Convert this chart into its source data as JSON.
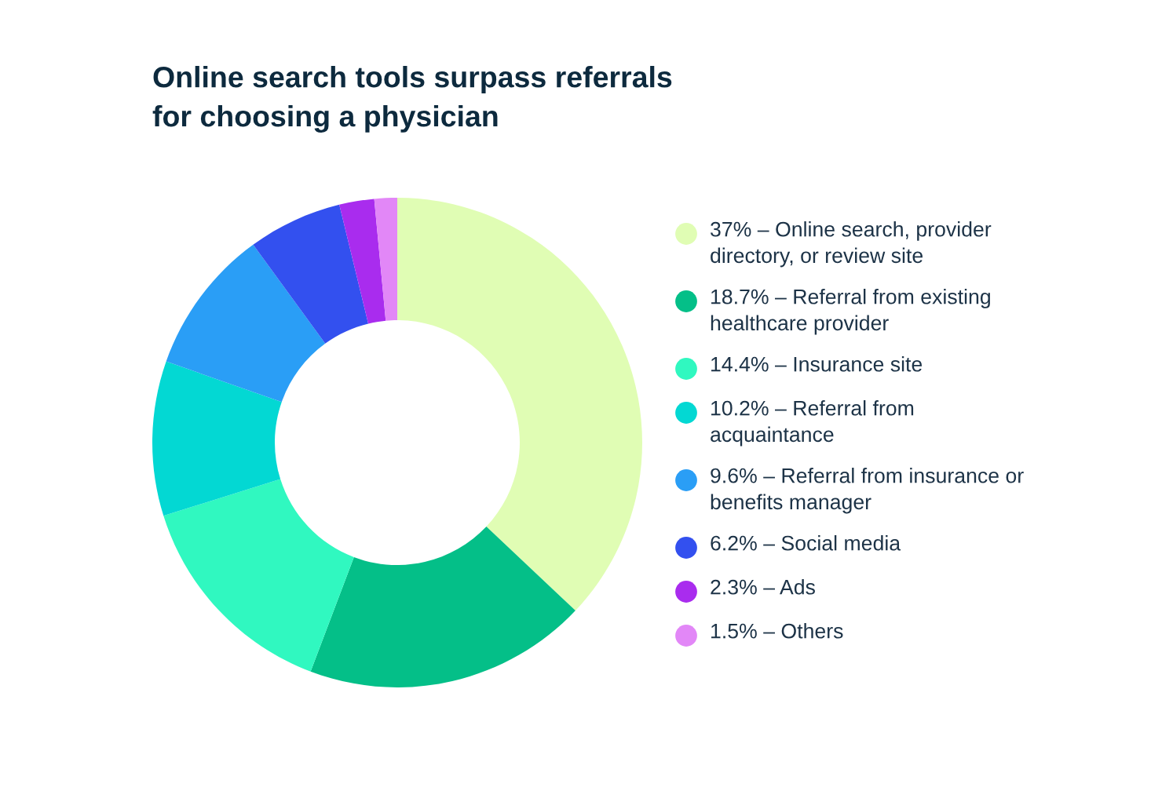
{
  "chart_data": {
    "type": "donut",
    "title": "Online search tools surpass referrals\nfor choosing a physician",
    "categories": [
      "37% – Online search, provider\ndirectory, or review site",
      "18.7% – Referral from existing\nhealthcare provider",
      "14.4% – Insurance site",
      "10.2% – Referral from\nacquaintance",
      "9.6% – Referral from insurance or\nbenefits manager",
      "6.2% – Social media",
      "2.3% – Ads",
      "1.5% – Others"
    ],
    "values": [
      37,
      18.7,
      14.4,
      10.2,
      9.6,
      6.2,
      2.3,
      1.5
    ],
    "colors": [
      "#e0fdb4",
      "#04bf88",
      "#30f8c0",
      "#03d8d3",
      "#2a9ef6",
      "#3350ef",
      "#a92cee",
      "#e287f7"
    ],
    "legend": "right"
  }
}
